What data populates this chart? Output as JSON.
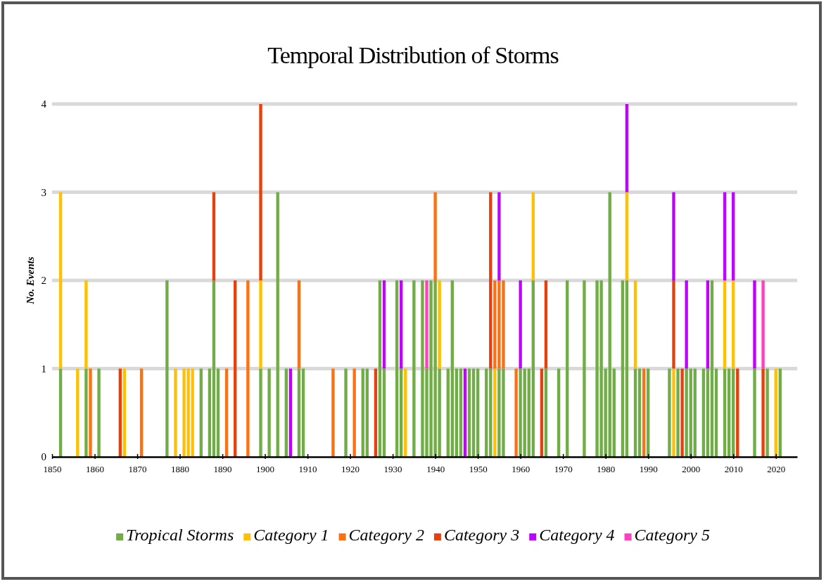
{
  "chart_data": {
    "type": "bar",
    "stacked": true,
    "title": "Temporal Distribution of Storms",
    "ylabel": "No. Events",
    "x": [
      1852,
      1856,
      1858,
      1859,
      1861,
      1866,
      1867,
      1871,
      1877,
      1879,
      1881,
      1882,
      1883,
      1885,
      1887,
      1888,
      1889,
      1891,
      1893,
      1896,
      1899,
      1901,
      1903,
      1905,
      1906,
      1908,
      1909,
      1916,
      1919,
      1921,
      1923,
      1924,
      1926,
      1927,
      1928,
      1931,
      1932,
      1933,
      1935,
      1937,
      1938,
      1939,
      1940,
      1941,
      1943,
      1944,
      1945,
      1946,
      1947,
      1948,
      1949,
      1950,
      1952,
      1953,
      1954,
      1955,
      1956,
      1959,
      1960,
      1961,
      1962,
      1963,
      1965,
      1966,
      1969,
      1971,
      1975,
      1978,
      1979,
      1980,
      1981,
      1982,
      1984,
      1985,
      1987,
      1988,
      1989,
      1990,
      1995,
      1996,
      1997,
      1998,
      1999,
      2000,
      2001,
      2003,
      2004,
      2005,
      2006,
      2008,
      2009,
      2010,
      2011,
      2015,
      2017,
      2018,
      2020,
      2021
    ],
    "series": [
      {
        "name": "Tropical Storms",
        "color": "#70ad47",
        "values": [
          1,
          0,
          1,
          0,
          1,
          0,
          0,
          0,
          2,
          0,
          0,
          0,
          0,
          1,
          1,
          2,
          1,
          0,
          0,
          0,
          1,
          1,
          3,
          1,
          0,
          1,
          1,
          0,
          1,
          0,
          1,
          1,
          0,
          2,
          1,
          2,
          1,
          0,
          2,
          2,
          1,
          2,
          2,
          1,
          1,
          2,
          1,
          1,
          0,
          1,
          1,
          1,
          1,
          1,
          0,
          1,
          1,
          0,
          1,
          1,
          1,
          2,
          0,
          1,
          1,
          2,
          2,
          2,
          2,
          1,
          3,
          1,
          2,
          2,
          1,
          1,
          0,
          1,
          1,
          0,
          1,
          0,
          1,
          1,
          1,
          1,
          1,
          2,
          1,
          1,
          1,
          1,
          0,
          1,
          0,
          1,
          0,
          1
        ]
      },
      {
        "name": "Category 1",
        "color": "#ffc000",
        "values": [
          2,
          1,
          1,
          0,
          0,
          0,
          1,
          0,
          0,
          1,
          1,
          1,
          1,
          0,
          0,
          0,
          0,
          0,
          0,
          0,
          1,
          0,
          0,
          0,
          0,
          0,
          0,
          0,
          0,
          0,
          0,
          0,
          0,
          0,
          0,
          0,
          0,
          1,
          0,
          0,
          0,
          0,
          0,
          1,
          0,
          0,
          0,
          0,
          0,
          0,
          0,
          0,
          0,
          0,
          1,
          0,
          0,
          0,
          0,
          0,
          0,
          1,
          0,
          0,
          0,
          0,
          0,
          0,
          0,
          0,
          0,
          0,
          0,
          1,
          1,
          0,
          0,
          0,
          0,
          1,
          0,
          0,
          0,
          0,
          0,
          0,
          0,
          0,
          0,
          1,
          0,
          1,
          0,
          0,
          0,
          0,
          1,
          0
        ]
      },
      {
        "name": "Category 2",
        "color": "#ff7010",
        "values": [
          0,
          0,
          0,
          1,
          0,
          0,
          0,
          1,
          0,
          0,
          0,
          0,
          0,
          0,
          0,
          0,
          0,
          1,
          0,
          2,
          0,
          0,
          0,
          0,
          0,
          1,
          0,
          1,
          0,
          1,
          0,
          0,
          0,
          0,
          0,
          0,
          0,
          0,
          0,
          0,
          0,
          0,
          1,
          0,
          0,
          0,
          0,
          0,
          0,
          0,
          0,
          0,
          0,
          0,
          1,
          1,
          1,
          1,
          0,
          0,
          0,
          0,
          0,
          0,
          0,
          0,
          0,
          0,
          0,
          0,
          0,
          0,
          0,
          0,
          0,
          0,
          1,
          0,
          0,
          0,
          0,
          0,
          0,
          0,
          0,
          0,
          0,
          0,
          0,
          0,
          0,
          0,
          0,
          0,
          0,
          0,
          0,
          0
        ]
      },
      {
        "name": "Category 3",
        "color": "#e8400c",
        "values": [
          0,
          0,
          0,
          0,
          0,
          1,
          0,
          0,
          0,
          0,
          0,
          0,
          0,
          0,
          0,
          1,
          0,
          0,
          2,
          0,
          2,
          0,
          0,
          0,
          0,
          0,
          0,
          0,
          0,
          0,
          0,
          0,
          1,
          0,
          0,
          0,
          0,
          0,
          0,
          0,
          0,
          0,
          0,
          0,
          0,
          0,
          0,
          0,
          0,
          0,
          0,
          0,
          0,
          2,
          0,
          0,
          0,
          0,
          0,
          0,
          0,
          0,
          1,
          1,
          0,
          0,
          0,
          0,
          0,
          0,
          0,
          0,
          0,
          0,
          0,
          0,
          0,
          0,
          0,
          1,
          0,
          1,
          0,
          0,
          0,
          0,
          0,
          0,
          0,
          0,
          0,
          0,
          1,
          0,
          1,
          0,
          0,
          0
        ]
      },
      {
        "name": "Category 4",
        "color": "#c000ff",
        "values": [
          0,
          0,
          0,
          0,
          0,
          0,
          0,
          0,
          0,
          0,
          0,
          0,
          0,
          0,
          0,
          0,
          0,
          0,
          0,
          0,
          0,
          0,
          0,
          0,
          1,
          0,
          0,
          0,
          0,
          0,
          0,
          0,
          0,
          0,
          1,
          0,
          1,
          0,
          0,
          0,
          0,
          0,
          0,
          0,
          0,
          0,
          0,
          0,
          1,
          0,
          0,
          0,
          0,
          0,
          0,
          1,
          0,
          0,
          1,
          0,
          0,
          0,
          0,
          0,
          0,
          0,
          0,
          0,
          0,
          0,
          0,
          0,
          0,
          1,
          0,
          0,
          0,
          0,
          0,
          1,
          0,
          0,
          1,
          0,
          0,
          0,
          1,
          0,
          0,
          1,
          0,
          1,
          0,
          1,
          0,
          0,
          0,
          0
        ]
      },
      {
        "name": "Category 5",
        "color": "#ff40c0",
        "values": [
          0,
          0,
          0,
          0,
          0,
          0,
          0,
          0,
          0,
          0,
          0,
          0,
          0,
          0,
          0,
          0,
          0,
          0,
          0,
          0,
          0,
          0,
          0,
          0,
          0,
          0,
          0,
          0,
          0,
          0,
          0,
          0,
          0,
          0,
          0,
          0,
          0,
          0,
          0,
          0,
          1,
          0,
          0,
          0,
          0,
          0,
          0,
          0,
          0,
          0,
          0,
          0,
          0,
          0,
          0,
          0,
          0,
          0,
          0,
          0,
          0,
          0,
          0,
          0,
          0,
          0,
          0,
          0,
          0,
          0,
          0,
          0,
          0,
          0,
          0,
          0,
          0,
          0,
          0,
          0,
          0,
          0,
          0,
          0,
          0,
          0,
          0,
          0,
          0,
          0,
          0,
          0,
          0,
          0,
          1,
          0,
          0,
          0
        ]
      }
    ],
    "xlim": [
      1850,
      2025
    ],
    "xticks": [
      1850,
      1860,
      1870,
      1880,
      1890,
      1900,
      1910,
      1920,
      1930,
      1940,
      1950,
      1960,
      1970,
      1980,
      1990,
      2000,
      2010,
      2020
    ],
    "ylim": [
      0,
      4
    ],
    "yticks": [
      0,
      1,
      2,
      3,
      4
    ],
    "grid": "y",
    "legend": "bottom"
  }
}
